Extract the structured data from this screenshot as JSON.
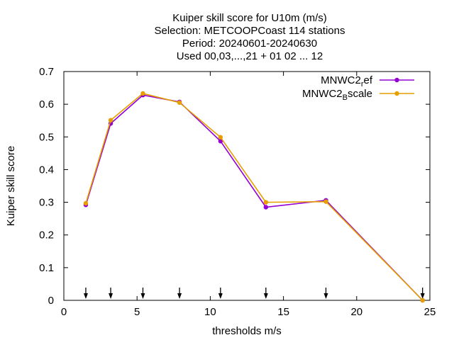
{
  "chart_data": {
    "type": "line",
    "title_lines": [
      "Kuiper skill score  for U10m (m/s)",
      "Selection: METCOOPCoast    114 stations",
      "Period: 20240601-20240630",
      "Used 00,03,...,21 + 01 02 ... 12"
    ],
    "xlabel": "thresholds m/s",
    "ylabel": "Kuiper skill score",
    "xlim": [
      0,
      25
    ],
    "ylim": [
      0,
      0.7
    ],
    "xticks": [
      0,
      5,
      10,
      15,
      20,
      25
    ],
    "yticks": [
      0,
      0.1,
      0.2,
      0.3,
      0.4,
      0.5,
      0.6,
      0.7
    ],
    "grid": false,
    "legend_position": "top-right",
    "threshold_markers": [
      1.5,
      3.2,
      5.4,
      7.9,
      10.7,
      13.8,
      17.9,
      24.5
    ],
    "series": [
      {
        "name": "MNWC2_ref",
        "legend_main": "MNWC2",
        "legend_sub": "r",
        "legend_tail": "ef",
        "color": "#9400d3",
        "x": [
          1.5,
          3.2,
          5.4,
          7.9,
          10.7,
          13.8,
          17.9,
          24.5
        ],
        "y": [
          0.292,
          0.541,
          0.628,
          0.607,
          0.487,
          0.285,
          0.306,
          0.0
        ]
      },
      {
        "name": "MNWC2_Bscale",
        "legend_main": "MNWC2",
        "legend_sub": "B",
        "legend_tail": "scale",
        "color": "#e69f00",
        "x": [
          1.5,
          3.2,
          5.4,
          7.9,
          10.7,
          13.8,
          17.9,
          24.5
        ],
        "y": [
          0.297,
          0.551,
          0.633,
          0.605,
          0.499,
          0.3,
          0.302,
          0.0
        ]
      }
    ]
  }
}
